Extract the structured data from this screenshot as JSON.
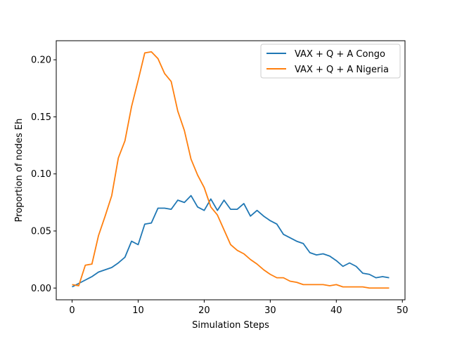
{
  "chart_data": {
    "type": "line",
    "title": "",
    "xlabel": "Simulation Steps",
    "ylabel": "Proportion of nodes Eh",
    "xlim": [
      -2.4,
      50.4
    ],
    "ylim": [
      -0.0103,
      0.2167
    ],
    "xticks": [
      0,
      10,
      20,
      30,
      40,
      50
    ],
    "xtick_labels": [
      "0",
      "10",
      "20",
      "30",
      "40",
      "50"
    ],
    "yticks": [
      0.0,
      0.05,
      0.1,
      0.15,
      0.2
    ],
    "ytick_labels": [
      "0.00",
      "0.05",
      "0.10",
      "0.15",
      "0.20"
    ],
    "grid": false,
    "legend_position": "top-right",
    "x": [
      0,
      1,
      2,
      3,
      4,
      5,
      6,
      7,
      8,
      9,
      10,
      11,
      12,
      13,
      14,
      15,
      16,
      17,
      18,
      19,
      20,
      21,
      22,
      23,
      24,
      25,
      26,
      27,
      28,
      29,
      30,
      31,
      32,
      33,
      34,
      35,
      36,
      37,
      38,
      39,
      40,
      41,
      42,
      43,
      44,
      45,
      46,
      47,
      48
    ],
    "series": [
      {
        "name": "VAX + Q + A Congo",
        "color": "#1f77b4",
        "values": [
          0.001,
          0.004,
          0.007,
          0.01,
          0.014,
          0.016,
          0.018,
          0.022,
          0.027,
          0.041,
          0.038,
          0.056,
          0.057,
          0.07,
          0.07,
          0.069,
          0.077,
          0.075,
          0.081,
          0.071,
          0.068,
          0.078,
          0.068,
          0.077,
          0.069,
          0.069,
          0.074,
          0.063,
          0.068,
          0.063,
          0.059,
          0.056,
          0.047,
          0.044,
          0.041,
          0.039,
          0.031,
          0.029,
          0.03,
          0.028,
          0.024,
          0.019,
          0.022,
          0.019,
          0.013,
          0.012,
          0.009,
          0.01,
          0.009
        ]
      },
      {
        "name": "VAX + Q + A Nigeria",
        "color": "#ff7f0e",
        "values": [
          0.003,
          0.002,
          0.02,
          0.021,
          0.046,
          0.063,
          0.081,
          0.114,
          0.129,
          0.159,
          0.182,
          0.206,
          0.207,
          0.201,
          0.188,
          0.181,
          0.155,
          0.138,
          0.113,
          0.099,
          0.088,
          0.071,
          0.064,
          0.051,
          0.038,
          0.033,
          0.03,
          0.025,
          0.021,
          0.016,
          0.012,
          0.009,
          0.009,
          0.006,
          0.005,
          0.003,
          0.003,
          0.003,
          0.003,
          0.002,
          0.003,
          0.001,
          0.001,
          0.001,
          0.001,
          0.0,
          0.0,
          0.0,
          0.0
        ]
      }
    ]
  }
}
